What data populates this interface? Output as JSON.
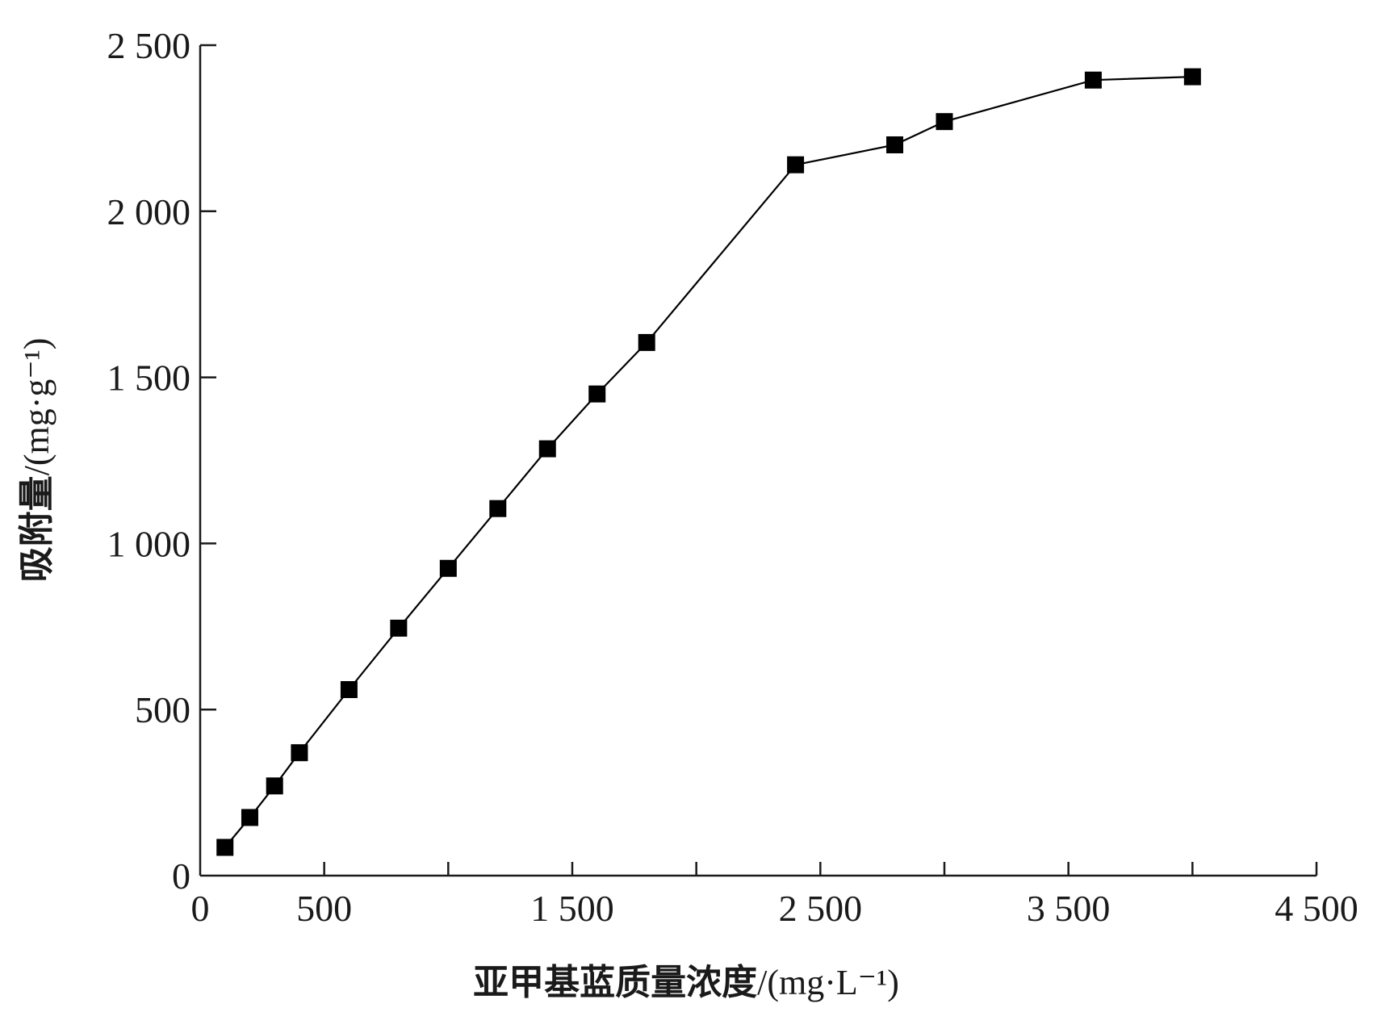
{
  "chart_data": {
    "type": "line",
    "title": "",
    "xlabel": "亚甲基蓝质量浓度",
    "xlabel_unit": "/(mg·L⁻¹)",
    "ylabel": "吸附量",
    "ylabel_unit": "/(mg·g⁻¹)",
    "xlim": [
      0,
      4500
    ],
    "ylim": [
      0,
      2500
    ],
    "x_ticks": [
      0,
      500,
      1000,
      1500,
      2000,
      2500,
      3000,
      3500,
      4000,
      4500
    ],
    "x_tick_labels": [
      "0",
      "500",
      "",
      "1 500",
      "",
      "2 500",
      "",
      "3 500",
      "",
      "4 500"
    ],
    "y_ticks": [
      0,
      500,
      1000,
      1500,
      2000,
      2500
    ],
    "y_tick_labels": [
      "0",
      "500",
      "1 000",
      "1 500",
      "2 000",
      "2 500"
    ],
    "grid": false,
    "marker": "square",
    "series": [
      {
        "color": "#000000",
        "x": [
          100,
          200,
          300,
          400,
          600,
          800,
          1000,
          1200,
          1400,
          1600,
          1800,
          2400,
          2800,
          3000,
          3600,
          4000
        ],
        "y": [
          85,
          175,
          270,
          370,
          560,
          745,
          925,
          1105,
          1285,
          1450,
          1605,
          2140,
          2200,
          2270,
          2395,
          2405
        ]
      }
    ]
  }
}
